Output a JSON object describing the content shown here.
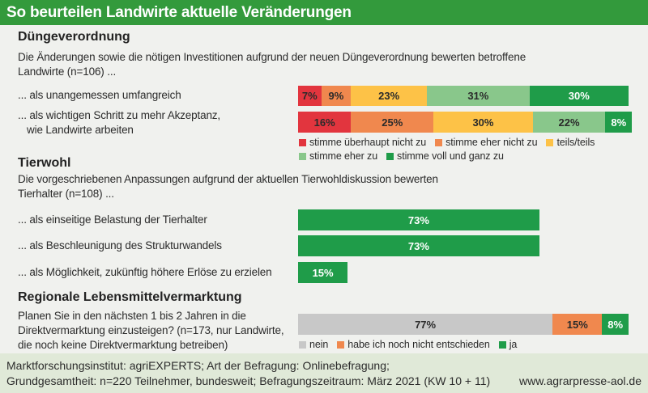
{
  "header": {
    "title": "So beurteilen Landwirte aktuelle Veränderungen",
    "background": "#339a3c"
  },
  "chart_data": [
    {
      "type": "bar",
      "orientation": "horizontal",
      "stacked": true,
      "title": "Düngeverordnung",
      "subtitle": [
        "Die Änderungen sowie die nötigen Investitionen aufgrund der neuen Düngeverordnung bewerten betroffene",
        "Landwirte (n=106) ..."
      ],
      "categories": [
        [
          "... als unangemessen umfangreich"
        ],
        [
          "... als wichtigen Schritt zu mehr Akzeptanz,",
          "wie Landwirte arbeiten"
        ]
      ],
      "unit": "%",
      "xlim": [
        0,
        100
      ],
      "grid": false,
      "legend": "bottom",
      "series": [
        {
          "name": "stimme überhaupt nicht zu",
          "values": [
            7,
            16
          ],
          "color": "#e2353e",
          "label_color": "#2b2b2b"
        },
        {
          "name": "stimme eher nicht zu",
          "values": [
            9,
            25
          ],
          "color": "#f0884e",
          "label_color": "#2b2b2b"
        },
        {
          "name": "teils/teils",
          "values": [
            23,
            30
          ],
          "color": "#fdc247",
          "label_color": "#2b2b2b"
        },
        {
          "name": "stimme eher zu",
          "values": [
            31,
            22
          ],
          "color": "#89c78b",
          "label_color": "#2b2b2b"
        },
        {
          "name": "stimme voll und ganz zu",
          "values": [
            30,
            8
          ],
          "color": "#1f9c49",
          "label_color": "#ffffff"
        }
      ]
    },
    {
      "type": "bar",
      "orientation": "horizontal",
      "stacked": false,
      "title": "Tierwohl",
      "subtitle": [
        "Die vorgeschriebenen Anpassungen aufgrund der aktuellen Tierwohldiskussion bewerten",
        "Tierhalter (n=108) ..."
      ],
      "categories": [
        [
          "... als einseitige Belastung der Tierhalter"
        ],
        [
          "... als Beschleunigung des Strukturwandels"
        ],
        [
          "... als Möglichkeit, zukünftig höhere Erlöse zu erzielen"
        ]
      ],
      "unit": "%",
      "xlim": [
        0,
        100
      ],
      "grid": false,
      "values": [
        73,
        73,
        15
      ],
      "color": "#1f9c49",
      "label_color": "#ffffff"
    },
    {
      "type": "bar",
      "orientation": "horizontal",
      "stacked": true,
      "title": "Regionale Lebensmittelvermarktung",
      "categories": [
        [
          "Planen Sie in den nächsten 1 bis 2 Jahren in die",
          "Direktvermarktung einzusteigen? (n=173, nur Landwirte,",
          "die noch keine Direktvermarktung betreiben)"
        ]
      ],
      "unit": "%",
      "xlim": [
        0,
        100
      ],
      "grid": false,
      "legend": "bottom",
      "series": [
        {
          "name": "nein",
          "values": [
            77
          ],
          "color": "#c8c8c8",
          "label_color": "#2b2b2b"
        },
        {
          "name": "habe ich noch nicht entschieden",
          "values": [
            15
          ],
          "color": "#f0884e",
          "label_color": "#2b2b2b"
        },
        {
          "name": "ja",
          "values": [
            8
          ],
          "color": "#1f9c49",
          "label_color": "#ffffff"
        }
      ]
    }
  ],
  "footer": {
    "line1": "Marktforschungsinstitut: agriEXPERTS; Art der Befragung: Onlinebefragung;",
    "line2": "Grundgesamtheit: n=220 Teilnehmer, bundesweit; Befragungszeitraum: März 2021 (KW 10 + 11)",
    "url": "www.agrarpresse-aol.de"
  }
}
